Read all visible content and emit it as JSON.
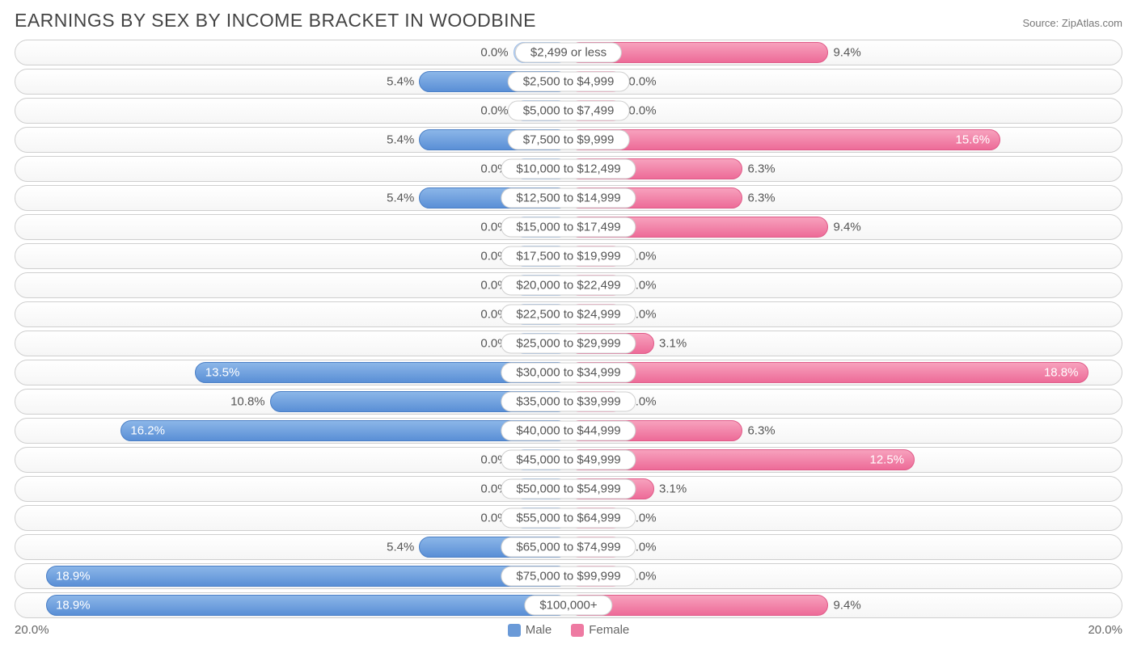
{
  "title": "EARNINGS BY SEX BY INCOME BRACKET IN WOODBINE",
  "source": "Source: ZipAtlas.com",
  "axis_max": 20.0,
  "axis_label_left": "20.0%",
  "axis_label_right": "20.0%",
  "min_bar_pct": 2.0,
  "colors": {
    "male_bar": "#6a9ad8",
    "female_bar": "#ee7aa2",
    "male_light": "#b5cdee",
    "female_light": "#f9bdd2",
    "text": "#555555",
    "border": "#cfcfcf",
    "bg": "#ffffff"
  },
  "legend": {
    "male": "Male",
    "female": "Female"
  },
  "rows": [
    {
      "label": "$2,499 or less",
      "male": 0.0,
      "female": 9.4
    },
    {
      "label": "$2,500 to $4,999",
      "male": 5.4,
      "female": 0.0
    },
    {
      "label": "$5,000 to $7,499",
      "male": 0.0,
      "female": 0.0
    },
    {
      "label": "$7,500 to $9,999",
      "male": 5.4,
      "female": 15.6
    },
    {
      "label": "$10,000 to $12,499",
      "male": 0.0,
      "female": 6.3
    },
    {
      "label": "$12,500 to $14,999",
      "male": 5.4,
      "female": 6.3
    },
    {
      "label": "$15,000 to $17,499",
      "male": 0.0,
      "female": 9.4
    },
    {
      "label": "$17,500 to $19,999",
      "male": 0.0,
      "female": 0.0
    },
    {
      "label": "$20,000 to $22,499",
      "male": 0.0,
      "female": 0.0
    },
    {
      "label": "$22,500 to $24,999",
      "male": 0.0,
      "female": 0.0
    },
    {
      "label": "$25,000 to $29,999",
      "male": 0.0,
      "female": 3.1
    },
    {
      "label": "$30,000 to $34,999",
      "male": 13.5,
      "female": 18.8
    },
    {
      "label": "$35,000 to $39,999",
      "male": 10.8,
      "female": 0.0
    },
    {
      "label": "$40,000 to $44,999",
      "male": 16.2,
      "female": 6.3
    },
    {
      "label": "$45,000 to $49,999",
      "male": 0.0,
      "female": 12.5
    },
    {
      "label": "$50,000 to $54,999",
      "male": 0.0,
      "female": 3.1
    },
    {
      "label": "$55,000 to $64,999",
      "male": 0.0,
      "female": 0.0
    },
    {
      "label": "$65,000 to $74,999",
      "male": 5.4,
      "female": 0.0
    },
    {
      "label": "$75,000 to $99,999",
      "male": 18.9,
      "female": 0.0
    },
    {
      "label": "$100,000+",
      "male": 18.9,
      "female": 9.4
    }
  ]
}
